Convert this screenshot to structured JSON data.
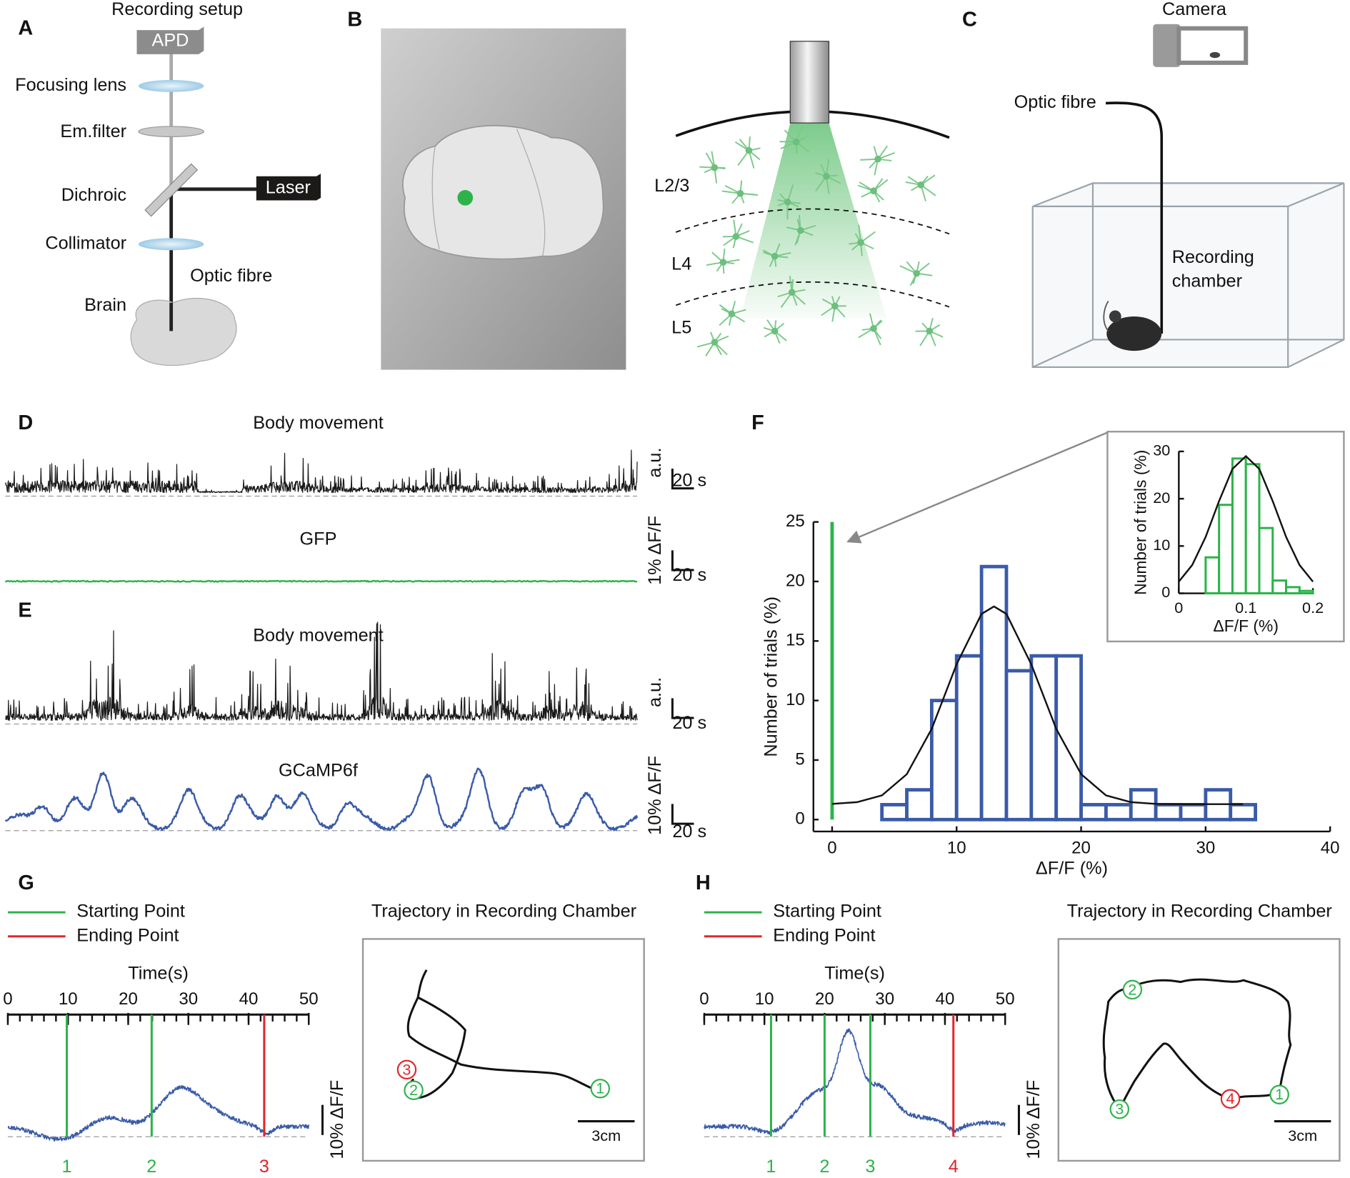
{
  "panels": {
    "A": {
      "label": "A",
      "title": "Recording setup",
      "parts": [
        "APD",
        "Focusing lens",
        "Em.filter",
        "Dichroic",
        "Laser",
        "Collimator",
        "Optic fibre",
        "Brain"
      ]
    },
    "B": {
      "label": "B",
      "layers": [
        "L2/3",
        "L4",
        "L5"
      ]
    },
    "C": {
      "label": "C",
      "camera": "Camera",
      "fibre": "Optic fibre",
      "chamber": [
        "Recording",
        "chamber"
      ]
    },
    "D": {
      "label": "D",
      "traces": [
        {
          "title": "Body movement",
          "scale_y": "a.u.",
          "scale_x": "20 s",
          "color": "#1a1a1a"
        },
        {
          "title": "GFP",
          "scale_y": "1% ΔF/F",
          "scale_x": "20 s",
          "color": "#2db34a"
        }
      ]
    },
    "E": {
      "label": "E",
      "traces": [
        {
          "title": "Body movement",
          "scale_y": "a.u.",
          "scale_x": "20 s",
          "color": "#1a1a1a"
        },
        {
          "title": "GCaMP6f",
          "scale_y": "10% ΔF/F",
          "scale_x": "20 s",
          "color": "#3a5ba8"
        }
      ]
    },
    "F": {
      "label": "F"
    },
    "G": {
      "label": "G",
      "legend": [
        {
          "name": "Starting Point",
          "color": "#2db34a"
        },
        {
          "name": "Ending Point",
          "color": "#e0262b"
        }
      ],
      "trajectory_title": "Trajectory in Recording Chamber",
      "scale_y": "10% ΔF/F",
      "scale_bar": "3cm",
      "time_axis": {
        "label": "Time(s)",
        "xlim": [
          0,
          50
        ],
        "xticks": [
          0,
          10,
          20,
          30,
          40,
          50
        ],
        "minor_xticks": [
          0,
          2,
          4,
          6,
          8,
          10,
          12,
          14,
          16,
          18,
          20,
          22,
          24,
          26,
          28,
          30,
          32,
          34,
          36,
          38,
          40,
          42,
          44,
          46,
          48,
          50
        ]
      },
      "events": [
        {
          "t": 9.8,
          "label": "1",
          "color": "#2db34a"
        },
        {
          "t": 23.9,
          "label": "2",
          "color": "#2db34a"
        },
        {
          "t": 42.6,
          "label": "3",
          "color": "#e0262b"
        }
      ]
    },
    "H": {
      "label": "H",
      "legend": [
        {
          "name": "Starting Point",
          "color": "#2db34a"
        },
        {
          "name": "Ending Point",
          "color": "#e0262b"
        }
      ],
      "trajectory_title": "Trajectory in Recording Chamber",
      "scale_y": "10% ΔF/F",
      "scale_bar": "3cm",
      "time_axis": {
        "label": "Time(s)",
        "xlim": [
          0,
          50
        ],
        "xticks": [
          0,
          10,
          20,
          30,
          40,
          50
        ],
        "minor_xticks": [
          0,
          2,
          4,
          6,
          8,
          10,
          12,
          14,
          16,
          18,
          20,
          22,
          24,
          26,
          28,
          30,
          32,
          34,
          36,
          38,
          40,
          42,
          44,
          46,
          48,
          50
        ]
      },
      "events": [
        {
          "t": 11.1,
          "label": "1",
          "color": "#2db34a"
        },
        {
          "t": 20,
          "label": "2",
          "color": "#2db34a"
        },
        {
          "t": 27.6,
          "label": "3",
          "color": "#2db34a"
        },
        {
          "t": 41.4,
          "label": "4",
          "color": "#e0262b"
        }
      ]
    }
  },
  "chart_data": [
    {
      "type": "histogram",
      "xlabel": "ΔF/F (%)",
      "ylabel": "Number of trials (%)",
      "bins": [
        4,
        6,
        8,
        10,
        12,
        14,
        16,
        18,
        20,
        22,
        24,
        26,
        28,
        30,
        32,
        34
      ],
      "values": [
        1.25,
        2.5,
        10,
        13.75,
        21.25,
        12.5,
        13.75,
        13.75,
        1.25,
        1.25,
        2.5,
        1.25,
        1.25,
        2.5,
        1.25
      ],
      "color": "#3a5ba8",
      "reference_bar": {
        "x": 0,
        "value": 25,
        "color": "#2db34a"
      },
      "fit": {
        "x": [
          0,
          2,
          4,
          6,
          8,
          10,
          12,
          13,
          14,
          16,
          18,
          20,
          22,
          24,
          26,
          28,
          30,
          33
        ],
        "values": [
          1.32,
          1.46,
          2.03,
          3.81,
          7.62,
          13.04,
          17.27,
          17.9,
          17.27,
          13.04,
          7.62,
          3.81,
          2.03,
          1.46,
          1.32,
          1.3,
          1.3,
          1.3
        ],
        "color": "#111111"
      },
      "xlim": [
        -1.5,
        40
      ],
      "ylim": [
        -1,
        25
      ],
      "xticks": [
        0,
        10,
        20,
        30,
        40
      ],
      "yticks": [
        0,
        5,
        10,
        15,
        20,
        25
      ]
    },
    {
      "type": "histogram",
      "xlabel": "ΔF/F (%)",
      "ylabel": "Number of trials (%)",
      "bins": [
        0.04,
        0.06,
        0.08,
        0.1,
        0.12,
        0.14,
        0.16,
        0.18,
        0.2
      ],
      "values": [
        7.6,
        18.7,
        28.5,
        27.3,
        13.8,
        2.7,
        1.3,
        0.5
      ],
      "color": "#2db34a",
      "fit": {
        "x": [
          0,
          0.02,
          0.04,
          0.06,
          0.08,
          0.1,
          0.12,
          0.14,
          0.16,
          0.18,
          0.2
        ],
        "values": [
          2.45,
          5.98,
          11.9,
          19.5,
          26.3,
          29,
          26.3,
          19.5,
          11.9,
          5.98,
          2.45
        ],
        "color": "#111111"
      },
      "xlim": [
        0,
        0.2
      ],
      "ylim": [
        0,
        30
      ],
      "xticks": [
        0,
        0.1,
        0.2
      ],
      "yticks": [
        0,
        10,
        20,
        30
      ]
    }
  ]
}
